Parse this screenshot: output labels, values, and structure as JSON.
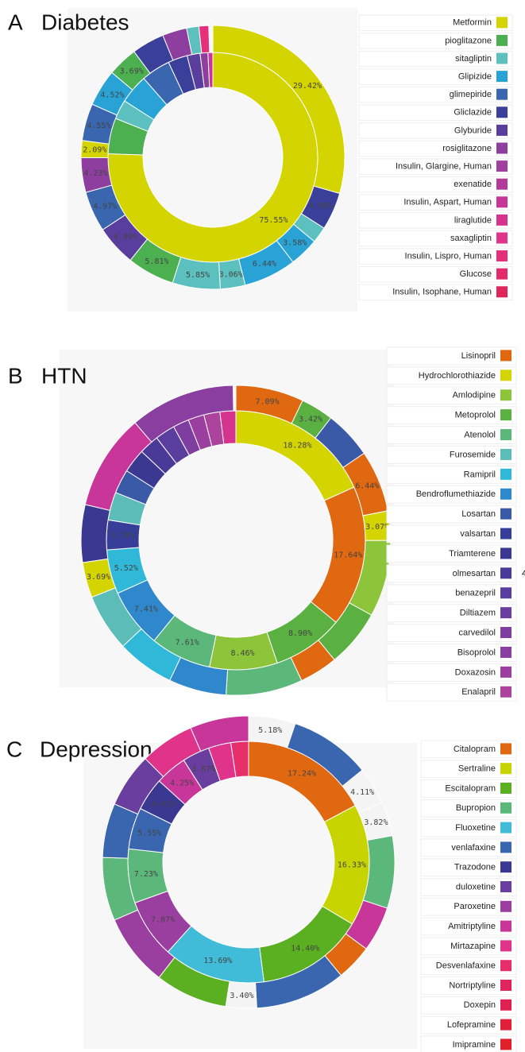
{
  "chart_data": [
    {
      "type": "sunburst",
      "panel": "A",
      "title": "Diabetes",
      "legend": [
        {
          "name": "Metformin",
          "color": "#d4d400"
        },
        {
          "name": "pioglitazone",
          "color": "#4caf50"
        },
        {
          "name": "sitagliptin",
          "color": "#5bc0be"
        },
        {
          "name": "Glipizide",
          "color": "#29a3d6"
        },
        {
          "name": "glimepiride",
          "color": "#3a66b0"
        },
        {
          "name": "Gliclazide",
          "color": "#3a3f9a"
        },
        {
          "name": "Glyburide",
          "color": "#5a3e9e"
        },
        {
          "name": "rosiglitazone",
          "color": "#8e3e9e"
        },
        {
          "name": "Insulin, Glargine, Human",
          "color": "#a03fa0"
        },
        {
          "name": "exenatide",
          "color": "#b43a9a"
        },
        {
          "name": "Insulin, Aspart, Human",
          "color": "#c8369a"
        },
        {
          "name": "liraglutide",
          "color": "#d6338e"
        },
        {
          "name": "saxagliptin",
          "color": "#e0338a"
        },
        {
          "name": "Insulin, Lispro, Human",
          "color": "#e62f7a"
        },
        {
          "name": "Glucose",
          "color": "#e52a6a"
        },
        {
          "name": "Insulin, Isophane, Human",
          "color": "#e0255a"
        }
      ],
      "inner_ring": {
        "values": [
          75.55,
          5.5,
          3,
          4.5,
          4.5,
          3,
          2,
          1.2,
          0.75
        ],
        "value_labels": [
          "75.55%",
          null,
          null,
          null,
          null,
          null,
          null,
          null,
          null
        ],
        "colors": [
          "#d4d400",
          "#4caf50",
          "#5bc0be",
          "#29a3d6",
          "#3a66b0",
          "#3a3f9a",
          "#5a3e9e",
          "#8e3e9e",
          "#c8369a"
        ]
      },
      "outer_ring": {
        "values": [
          29.42,
          4.6,
          2,
          3.58,
          6.44,
          3.06,
          5.85,
          5.81,
          4.99,
          4.97,
          4.23,
          2.09,
          4.55,
          4.52,
          3.69,
          4,
          3,
          1.5,
          1.2
        ],
        "value_labels": [
          "29.42%",
          "4.60%",
          null,
          "3.58%",
          "6.44%",
          "3.06%",
          "5.85%",
          "5.81%",
          "4.99%",
          "4.97%",
          "4.23%",
          "2.09%",
          "4.55%",
          "4.52%",
          "3.69%",
          null,
          null,
          null,
          null
        ],
        "colors": [
          "#d4d400",
          "#3a3f9a",
          "#5bc0be",
          "#29a3d6",
          "#29a3d6",
          "#5bc0be",
          "#5bc0be",
          "#4caf50",
          "#5a3e9e",
          "#3a66b0",
          "#8e3e9e",
          "#d4d400",
          "#3a66b0",
          "#29a3d6",
          "#4caf50",
          "#3a3f9a",
          "#8e3e9e",
          "#5bc0be",
          "#e62f7a"
        ]
      }
    },
    {
      "type": "sunburst",
      "panel": "B",
      "title": "HTN",
      "clipped_label": "4",
      "legend": [
        {
          "name": "Lisinopril",
          "color": "#e06810"
        },
        {
          "name": "Hydrochlorothiazide",
          "color": "#d4d400"
        },
        {
          "name": "Amlodipine",
          "color": "#8cc43a"
        },
        {
          "name": "Metoprolol",
          "color": "#5ab040"
        },
        {
          "name": "Atenolol",
          "color": "#5cb87a"
        },
        {
          "name": "Furosemide",
          "color": "#5bbcb8"
        },
        {
          "name": "Ramipril",
          "color": "#30b8d8"
        },
        {
          "name": "Bendroflumethiazide",
          "color": "#3088cc"
        },
        {
          "name": "Losartan",
          "color": "#3a5aa8"
        },
        {
          "name": "valsartan",
          "color": "#363e98"
        },
        {
          "name": "Triamterene",
          "color": "#3a3890"
        },
        {
          "name": "olmesartan",
          "color": "#4a3a98"
        },
        {
          "name": "benazepril",
          "color": "#5a3e9e"
        },
        {
          "name": "Diltiazem",
          "color": "#6a3e9e"
        },
        {
          "name": "carvedilol",
          "color": "#7e3ea0"
        },
        {
          "name": "Bisoprolol",
          "color": "#8a3ea0"
        },
        {
          "name": "Doxazosin",
          "color": "#9a3ea0"
        },
        {
          "name": "Enalapril",
          "color": "#ac449e"
        }
      ],
      "inner_ring": {
        "values": [
          18.28,
          17.64,
          8.9,
          8.46,
          7.61,
          7.41,
          5.52,
          3.7,
          3.5,
          3,
          3,
          2.5,
          2.5,
          2,
          2,
          2,
          1.98
        ],
        "value_labels": [
          "18.28%",
          "17.64%",
          "8.90%",
          "8.46%",
          "7.61%",
          "7.41%",
          "5.52%",
          "3.70%",
          null,
          null,
          null,
          null,
          null,
          null,
          null,
          null,
          null
        ],
        "colors": [
          "#d4d400",
          "#e06810",
          "#5ab040",
          "#8cc43a",
          "#5cb87a",
          "#3088cc",
          "#30b8d8",
          "#363e98",
          "#5bbcb8",
          "#3a5aa8",
          "#3a3890",
          "#4a3a98",
          "#5a3e9e",
          "#7e3ea0",
          "#9a3ea0",
          "#ac449e",
          "#d6338e"
        ]
      },
      "outer_ring": {
        "values": [
          7.09,
          3.42,
          5,
          6.44,
          3.07,
          8,
          6,
          4,
          8,
          6,
          6,
          6,
          3.69,
          6,
          10,
          11
        ],
        "value_labels": [
          "7.09%",
          "3.42%",
          null,
          "6.44%",
          "3.07%",
          null,
          null,
          null,
          null,
          null,
          null,
          null,
          "3.69%",
          null,
          null,
          null
        ],
        "colors": [
          "#e06810",
          "#5ab040",
          "#3a5aa8",
          "#e06810",
          "#d4d400",
          "#8cc43a",
          "#5ab040",
          "#e06810",
          "#5cb87a",
          "#3088cc",
          "#30b8d8",
          "#5bbcb8",
          "#d4d400",
          "#3a3890",
          "#c8369a",
          "#8a3ea0"
        ]
      }
    },
    {
      "type": "sunburst",
      "panel": "C",
      "title": "Depression",
      "legend": [
        {
          "name": "Citalopram",
          "color": "#e06810"
        },
        {
          "name": "Sertraline",
          "color": "#c8d400"
        },
        {
          "name": "Escitalopram",
          "color": "#5ab020"
        },
        {
          "name": "Bupropion",
          "color": "#5cb87a"
        },
        {
          "name": "Fluoxetine",
          "color": "#40bcd8"
        },
        {
          "name": "venlafaxine",
          "color": "#3a66b0"
        },
        {
          "name": "Trazodone",
          "color": "#3a3890"
        },
        {
          "name": "duloxetine",
          "color": "#6a3e9e"
        },
        {
          "name": "Paroxetine",
          "color": "#9a3ea0"
        },
        {
          "name": "Amitriptyline",
          "color": "#c8369a"
        },
        {
          "name": "Mirtazapine",
          "color": "#e0338a"
        },
        {
          "name": "Desvenlafaxine",
          "color": "#e62f6a"
        },
        {
          "name": "Nortriptyline",
          "color": "#e0255a"
        },
        {
          "name": "Doxepin",
          "color": "#e02050"
        },
        {
          "name": "Lofepramine",
          "color": "#e0203a"
        },
        {
          "name": "Imipramine",
          "color": "#e0202a"
        }
      ],
      "inner_ring": {
        "values": [
          17.24,
          16.33,
          14.4,
          13.69,
          7.87,
          7.23,
          5.55,
          4.41,
          4.25,
          3.67,
          3,
          2.36
        ],
        "value_labels": [
          "17.24%",
          "16.33%",
          "14.40%",
          "13.69%",
          "7.87%",
          "7.23%",
          "5.55%",
          "4.41%",
          "4.25%",
          "3.67%",
          null,
          null
        ],
        "colors": [
          "#e06810",
          "#c8d400",
          "#5ab020",
          "#40bcd8",
          "#9a3ea0",
          "#5cb87a",
          "#3a66b0",
          "#3a3890",
          "#c8369a",
          "#6a3e9e",
          "#e0338a",
          "#e62f6a"
        ]
      },
      "outer_ring": {
        "values": [
          5.18,
          9,
          4.11,
          3.82,
          8,
          5,
          4,
          10,
          3.4,
          8,
          8,
          7,
          6,
          6,
          6,
          6.49
        ],
        "value_labels": [
          "5.18%",
          null,
          "4.11%",
          "3.82%",
          null,
          null,
          null,
          null,
          "3.40%",
          null,
          null,
          null,
          null,
          null,
          null,
          null
        ],
        "colors": [
          "#f4f4f4",
          "#3a66b0",
          "#f4f4f4",
          "#f4f4f4",
          "#5cb87a",
          "#c8369a",
          "#e06810",
          "#3a66b0",
          "#f4f4f4",
          "#5ab020",
          "#9a3ea0",
          "#5cb87a",
          "#3a66b0",
          "#6a3e9e",
          "#e0338a",
          "#c8369a"
        ]
      }
    }
  ]
}
